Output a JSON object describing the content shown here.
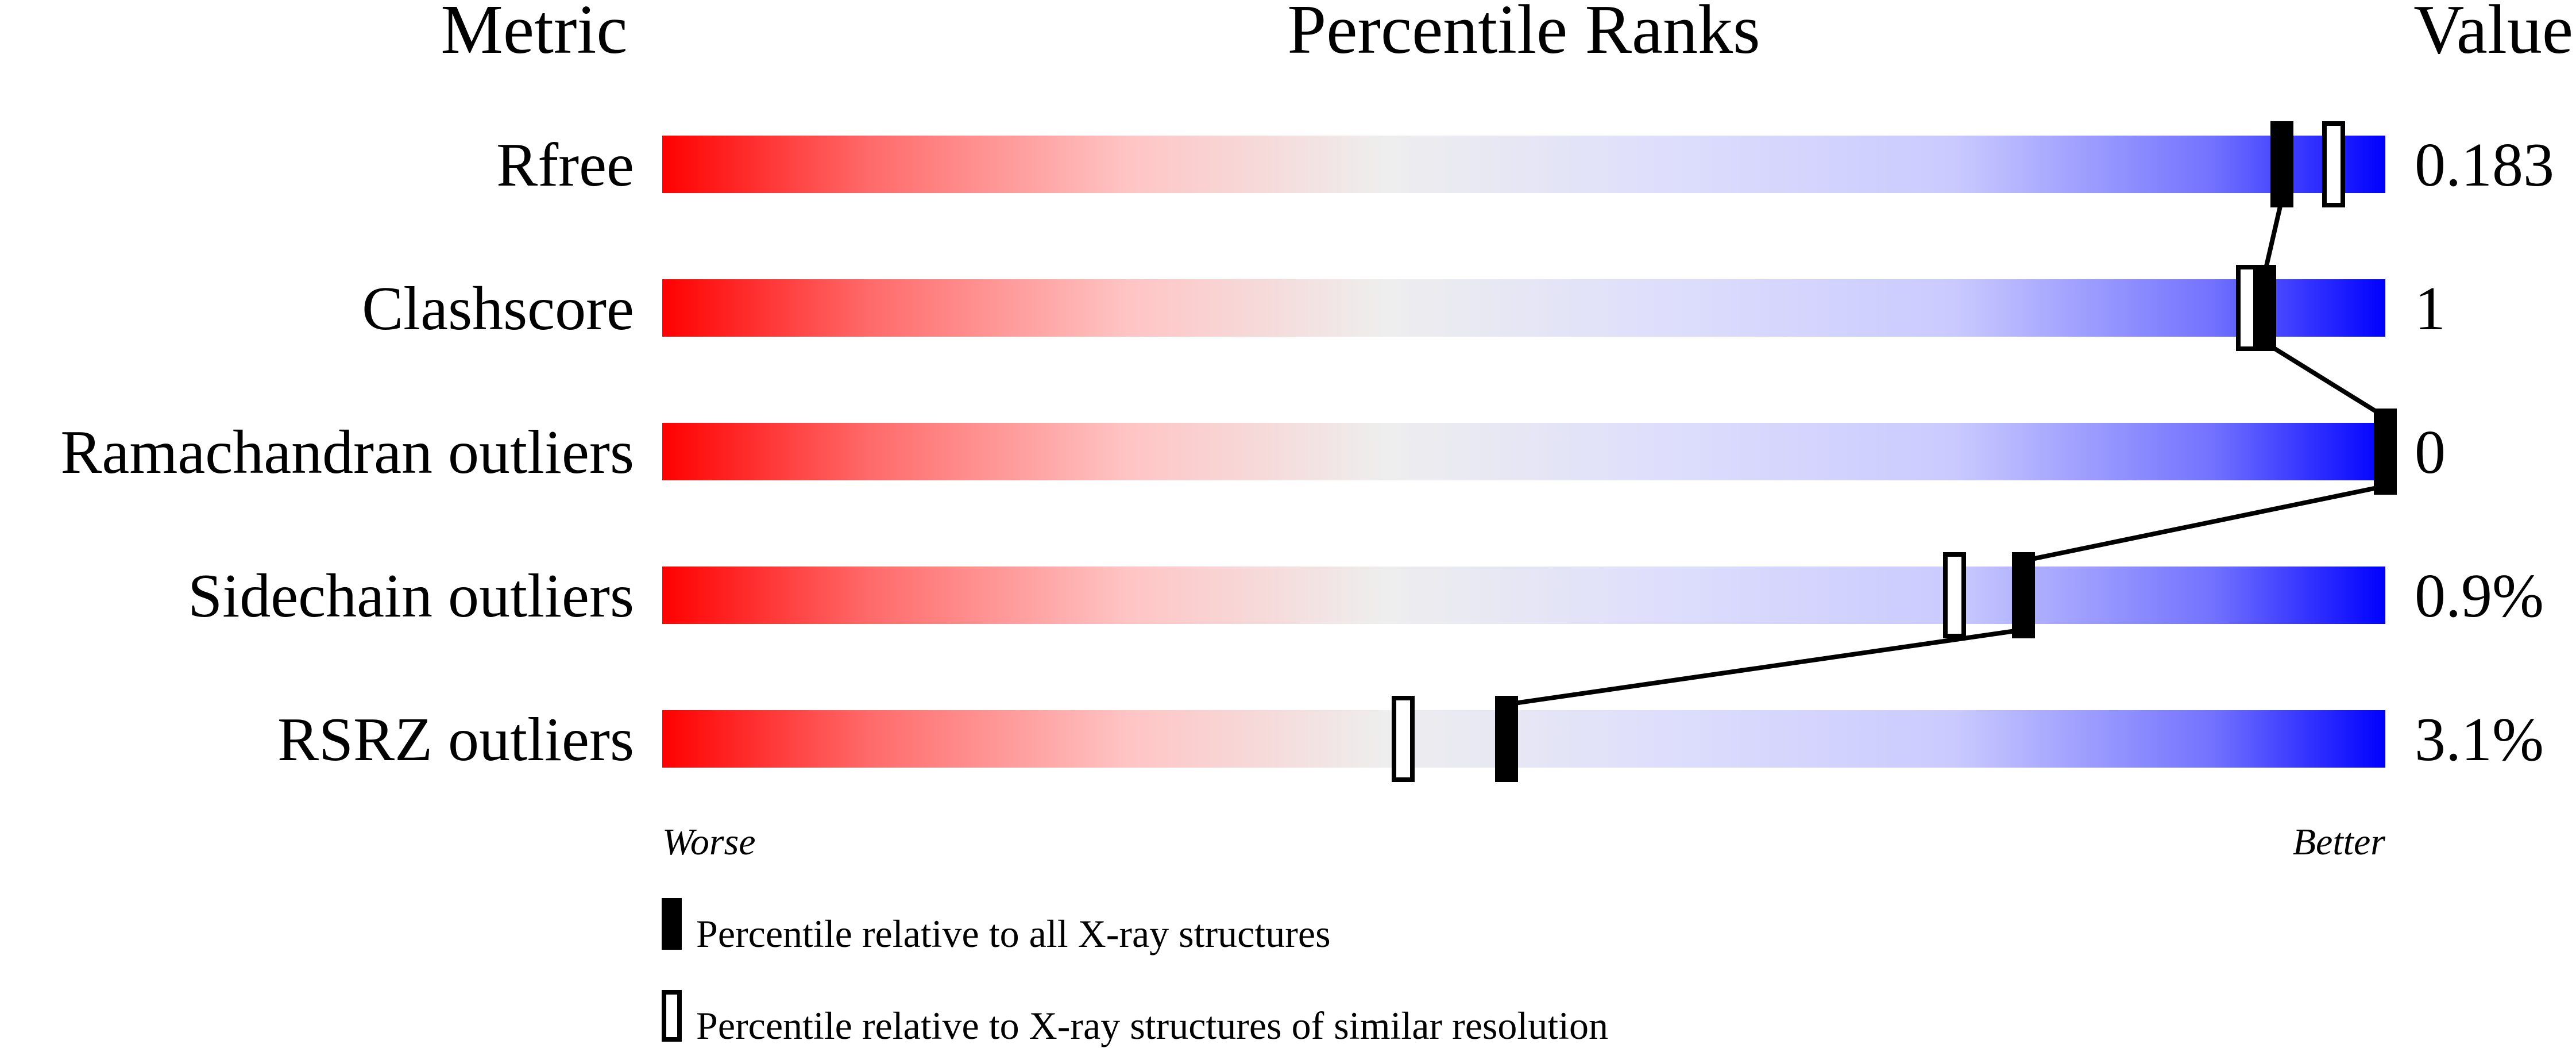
{
  "chart_data": {
    "type": "bar",
    "headers": {
      "metric": "Metric",
      "title": "Percentile Ranks",
      "value": "Value"
    },
    "axis": {
      "left": "Worse",
      "right": "Better",
      "range": [
        0,
        100
      ]
    },
    "gradient_colors": {
      "worse": "#ff0000",
      "middle": "#eeeeee",
      "better": "#0000ff"
    },
    "rows": [
      {
        "metric": "Rfree",
        "value": "0.183",
        "percentile_all": 94,
        "percentile_similar": 97
      },
      {
        "metric": "Clashscore",
        "value": "1",
        "percentile_all": 93,
        "percentile_similar": 92
      },
      {
        "metric": "Ramachandran outliers",
        "value": "0",
        "percentile_all": 100,
        "percentile_similar": null
      },
      {
        "metric": "Sidechain outliers",
        "value": "0.9%",
        "percentile_all": 79,
        "percentile_similar": 75
      },
      {
        "metric": "RSRZ outliers",
        "value": "3.1%",
        "percentile_all": 49,
        "percentile_similar": 43
      }
    ],
    "legend": [
      {
        "marker": "filled",
        "label": "Percentile relative to all X-ray structures"
      },
      {
        "marker": "hollow",
        "label": "Percentile relative to X-ray structures of similar resolution"
      }
    ]
  }
}
